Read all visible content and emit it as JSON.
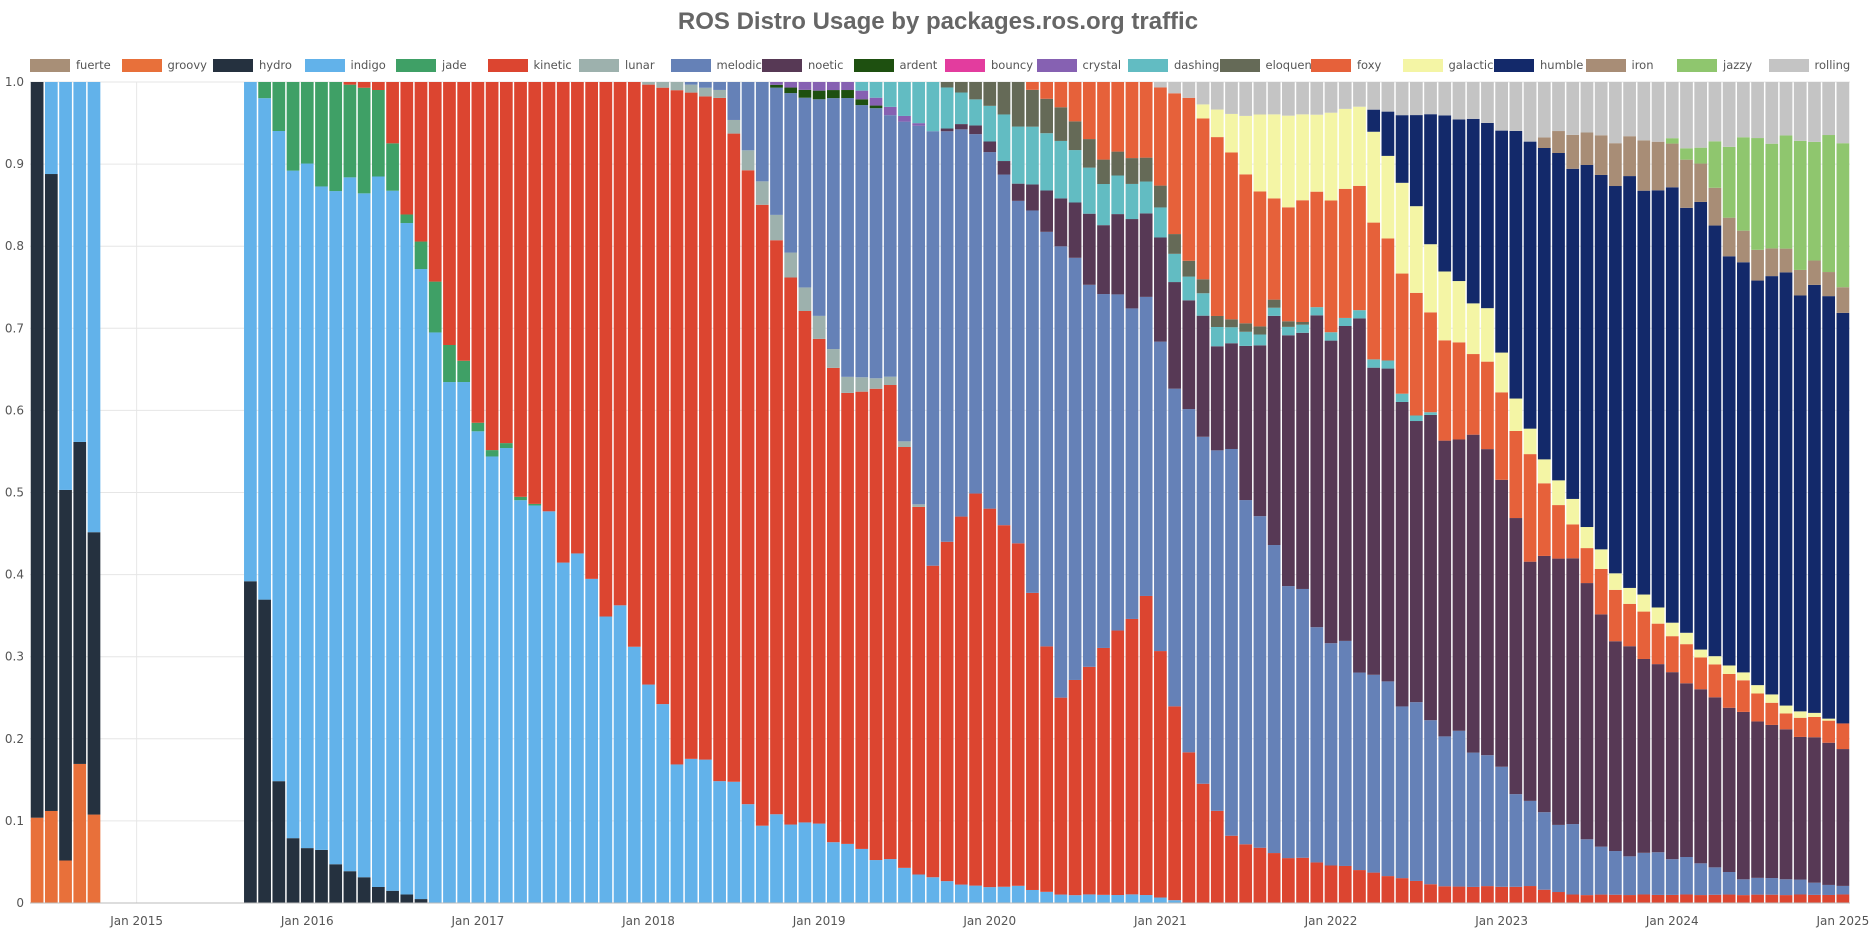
{
  "chart_data": {
    "type": "bar",
    "stacked": true,
    "normalized": true,
    "title": "ROS Distro Usage by packages.ros.org traffic",
    "xlabel": "",
    "ylabel": "",
    "ylim": [
      0,
      1.0
    ],
    "yticks": [
      "0",
      "0.1",
      "0.2",
      "0.3",
      "0.4",
      "0.5",
      "0.6",
      "0.7",
      "0.8",
      "0.9",
      "1.0"
    ],
    "x_range": [
      "2014-06",
      "2025-01"
    ],
    "xticks": [
      {
        "date": "2015-01",
        "label": "Jan 2015"
      },
      {
        "date": "2016-01",
        "label": "Jan 2016"
      },
      {
        "date": "2017-01",
        "label": "Jan 2017"
      },
      {
        "date": "2018-01",
        "label": "Jan 2018"
      },
      {
        "date": "2019-01",
        "label": "Jan 2019"
      },
      {
        "date": "2020-01",
        "label": "Jan 2020"
      },
      {
        "date": "2021-01",
        "label": "Jan 2021"
      },
      {
        "date": "2022-01",
        "label": "Jan 2022"
      },
      {
        "date": "2023-01",
        "label": "Jan 2023"
      },
      {
        "date": "2024-01",
        "label": "Jan 2024"
      },
      {
        "date": "2025-01",
        "label": "Jan 2025"
      }
    ],
    "grid": true,
    "legend_position": "top",
    "series": [
      {
        "name": "fuerte",
        "color": "#a88f77"
      },
      {
        "name": "groovy",
        "color": "#e8703a"
      },
      {
        "name": "hydro",
        "color": "#25313f"
      },
      {
        "name": "indigo",
        "color": "#62b2ea"
      },
      {
        "name": "jade",
        "color": "#3fa066"
      },
      {
        "name": "kinetic",
        "color": "#dc4530"
      },
      {
        "name": "lunar",
        "color": "#9db1ad"
      },
      {
        "name": "melodic",
        "color": "#6581b7"
      },
      {
        "name": "noetic",
        "color": "#573955"
      },
      {
        "name": "ardent",
        "color": "#1e5010"
      },
      {
        "name": "bouncy",
        "color": "#e33c9e"
      },
      {
        "name": "crystal",
        "color": "#8661b2"
      },
      {
        "name": "dashing",
        "color": "#62bcc2"
      },
      {
        "name": "eloquent",
        "color": "#656a57"
      },
      {
        "name": "foxy",
        "color": "#e6613a"
      },
      {
        "name": "galactic",
        "color": "#f4f5a5"
      },
      {
        "name": "humble",
        "color": "#13296a"
      },
      {
        "name": "iron",
        "color": "#a88d76"
      },
      {
        "name": "jazzy",
        "color": "#8fc66e"
      },
      {
        "name": "rolling",
        "color": "#c4c4c4"
      }
    ],
    "keyframes": [
      {
        "x": "2014-06",
        "values": {
          "groovy": 0.1,
          "hydro": 0.9
        }
      },
      {
        "x": "2014-07",
        "values": {
          "groovy": 0.12,
          "hydro": 0.76,
          "indigo": 0.12
        }
      },
      {
        "x": "2014-08",
        "values": {
          "groovy": 0.05,
          "hydro": 0.47,
          "indigo": 0.48
        }
      },
      {
        "x": "2014-09",
        "values": {
          "groovy": 0.17,
          "hydro": 0.39,
          "indigo": 0.44
        }
      },
      {
        "x": "2014-10",
        "values": {
          "groovy": 0.11,
          "hydro": 0.33,
          "indigo": 0.56
        }
      },
      {
        "x": "2015-09",
        "values": {
          "hydro": 0.38,
          "indigo": 0.62
        }
      },
      {
        "x": "2015-10",
        "values": {
          "hydro": 0.39,
          "indigo": 0.59,
          "jade": 0.02
        }
      },
      {
        "x": "2015-11",
        "values": {
          "hydro": 0.14,
          "indigo": 0.8,
          "jade": 0.06
        }
      },
      {
        "x": "2015-12",
        "values": {
          "hydro": 0.08,
          "indigo": 0.82,
          "jade": 0.1
        }
      },
      {
        "x": "2016-03",
        "values": {
          "hydro": 0.05,
          "indigo": 0.82,
          "jade": 0.13
        }
      },
      {
        "x": "2016-06",
        "values": {
          "hydro": 0.02,
          "indigo": 0.86,
          "jade": 0.11,
          "kinetic": 0.01
        }
      },
      {
        "x": "2016-08",
        "values": {
          "hydro": 0.01,
          "indigo": 0.83,
          "jade": 0.01,
          "kinetic": 0.15
        }
      },
      {
        "x": "2016-10",
        "values": {
          "indigo": 0.69,
          "jade": 0.06,
          "kinetic": 0.25
        }
      },
      {
        "x": "2017-01",
        "values": {
          "indigo": 0.58,
          "jade": 0.01,
          "kinetic": 0.41
        }
      },
      {
        "x": "2017-06",
        "values": {
          "indigo": 0.46,
          "kinetic": 0.54
        }
      },
      {
        "x": "2017-12",
        "values": {
          "indigo": 0.32,
          "kinetic": 0.68
        }
      },
      {
        "x": "2018-03",
        "values": {
          "indigo": 0.18,
          "kinetic": 0.81,
          "lunar": 0.01
        }
      },
      {
        "x": "2018-06",
        "values": {
          "indigo": 0.16,
          "kinetic": 0.82,
          "lunar": 0.01,
          "melodic": 0.01
        }
      },
      {
        "x": "2018-09",
        "values": {
          "indigo": 0.1,
          "kinetic": 0.75,
          "lunar": 0.03,
          "melodic": 0.12
        }
      },
      {
        "x": "2018-12",
        "values": {
          "indigo": 0.1,
          "kinetic": 0.62,
          "lunar": 0.03,
          "melodic": 0.23,
          "crystal": 0.01,
          "ardent": 0.01
        }
      },
      {
        "x": "2019-03",
        "values": {
          "indigo": 0.07,
          "kinetic": 0.55,
          "lunar": 0.02,
          "melodic": 0.34,
          "crystal": 0.01,
          "ardent": 0.01
        }
      },
      {
        "x": "2019-06",
        "values": {
          "indigo": 0.05,
          "kinetic": 0.58,
          "lunar": 0.01,
          "melodic": 0.32,
          "crystal": 0.01,
          "dashing": 0.03
        }
      },
      {
        "x": "2019-09",
        "values": {
          "indigo": 0.03,
          "kinetic": 0.38,
          "melodic": 0.53,
          "dashing": 0.06
        }
      },
      {
        "x": "2019-12",
        "values": {
          "indigo": 0.02,
          "kinetic": 0.48,
          "melodic": 0.44,
          "noetic": 0.01,
          "dashing": 0.03,
          "eloquent": 0.02
        }
      },
      {
        "x": "2020-03",
        "values": {
          "indigo": 0.02,
          "kinetic": 0.42,
          "melodic": 0.42,
          "noetic": 0.02,
          "dashing": 0.07,
          "eloquent": 0.05
        }
      },
      {
        "x": "2020-06",
        "values": {
          "indigo": 0.01,
          "kinetic": 0.24,
          "melodic": 0.55,
          "noetic": 0.06,
          "dashing": 0.07,
          "eloquent": 0.04,
          "foxy": 0.03
        }
      },
      {
        "x": "2020-09",
        "values": {
          "indigo": 0.01,
          "kinetic": 0.3,
          "melodic": 0.43,
          "noetic": 0.09,
          "dashing": 0.05,
          "eloquent": 0.03,
          "foxy": 0.09
        }
      },
      {
        "x": "2020-12",
        "values": {
          "indigo": 0.01,
          "kinetic": 0.36,
          "melodic": 0.36,
          "noetic": 0.11,
          "dashing": 0.04,
          "eloquent": 0.03,
          "foxy": 0.09
        }
      },
      {
        "x": "2021-03",
        "values": {
          "kinetic": 0.18,
          "melodic": 0.41,
          "noetic": 0.14,
          "dashing": 0.03,
          "eloquent": 0.02,
          "foxy": 0.2,
          "rolling": 0.02
        }
      },
      {
        "x": "2021-06",
        "values": {
          "kinetic": 0.08,
          "melodic": 0.46,
          "noetic": 0.13,
          "dashing": 0.02,
          "eloquent": 0.01,
          "foxy": 0.21,
          "galactic": 0.05,
          "rolling": 0.04
        }
      },
      {
        "x": "2021-09",
        "values": {
          "kinetic": 0.06,
          "melodic": 0.37,
          "noetic": 0.27,
          "dashing": 0.01,
          "eloquent": 0.01,
          "foxy": 0.13,
          "galactic": 0.11,
          "rolling": 0.04
        }
      },
      {
        "x": "2021-12",
        "values": {
          "kinetic": 0.05,
          "melodic": 0.29,
          "noetic": 0.36,
          "dashing": 0.01,
          "foxy": 0.15,
          "galactic": 0.1,
          "rolling": 0.04
        }
      },
      {
        "x": "2022-03",
        "values": {
          "kinetic": 0.04,
          "melodic": 0.25,
          "noetic": 0.41,
          "dashing": 0.01,
          "foxy": 0.16,
          "galactic": 0.1,
          "rolling": 0.03
        }
      },
      {
        "x": "2022-06",
        "values": {
          "kinetic": 0.03,
          "melodic": 0.22,
          "noetic": 0.36,
          "dashing": 0.01,
          "foxy": 0.15,
          "galactic": 0.11,
          "humble": 0.08,
          "rolling": 0.04
        }
      },
      {
        "x": "2022-09",
        "values": {
          "kinetic": 0.02,
          "melodic": 0.19,
          "noetic": 0.36,
          "foxy": 0.12,
          "galactic": 0.08,
          "humble": 0.19,
          "rolling": 0.04
        }
      },
      {
        "x": "2022-12",
        "values": {
          "kinetic": 0.02,
          "melodic": 0.16,
          "noetic": 0.38,
          "foxy": 0.1,
          "galactic": 0.06,
          "humble": 0.23,
          "rolling": 0.05
        }
      },
      {
        "x": "2023-03",
        "values": {
          "kinetic": 0.02,
          "melodic": 0.1,
          "noetic": 0.3,
          "foxy": 0.12,
          "galactic": 0.03,
          "humble": 0.36,
          "rolling": 0.07
        }
      },
      {
        "x": "2023-06",
        "values": {
          "kinetic": 0.01,
          "melodic": 0.08,
          "noetic": 0.33,
          "foxy": 0.04,
          "galactic": 0.03,
          "humble": 0.41,
          "iron": 0.04,
          "rolling": 0.06
        }
      },
      {
        "x": "2023-09",
        "values": {
          "kinetic": 0.01,
          "melodic": 0.05,
          "noetic": 0.26,
          "foxy": 0.06,
          "galactic": 0.02,
          "humble": 0.48,
          "iron": 0.05,
          "rolling": 0.07
        }
      },
      {
        "x": "2023-12",
        "values": {
          "kinetic": 0.01,
          "melodic": 0.05,
          "noetic": 0.23,
          "foxy": 0.05,
          "galactic": 0.02,
          "humble": 0.51,
          "iron": 0.06,
          "rolling": 0.07
        }
      },
      {
        "x": "2024-03",
        "values": {
          "kinetic": 0.01,
          "melodic": 0.04,
          "noetic": 0.21,
          "foxy": 0.04,
          "galactic": 0.01,
          "humble": 0.54,
          "iron": 0.05,
          "jazzy": 0.02,
          "rolling": 0.08
        }
      },
      {
        "x": "2024-06",
        "values": {
          "kinetic": 0.01,
          "melodic": 0.02,
          "noetic": 0.2,
          "foxy": 0.04,
          "galactic": 0.01,
          "humble": 0.49,
          "iron": 0.04,
          "jazzy": 0.12,
          "rolling": 0.07
        }
      },
      {
        "x": "2024-09",
        "values": {
          "kinetic": 0.01,
          "melodic": 0.02,
          "noetic": 0.18,
          "foxy": 0.02,
          "galactic": 0.01,
          "humble": 0.52,
          "iron": 0.03,
          "jazzy": 0.14,
          "rolling": 0.07
        }
      },
      {
        "x": "2025-01",
        "values": {
          "kinetic": 0.01,
          "melodic": 0.01,
          "noetic": 0.17,
          "foxy": 0.03,
          "humble": 0.51,
          "iron": 0.03,
          "jazzy": 0.17,
          "rolling": 0.07
        }
      }
    ]
  }
}
